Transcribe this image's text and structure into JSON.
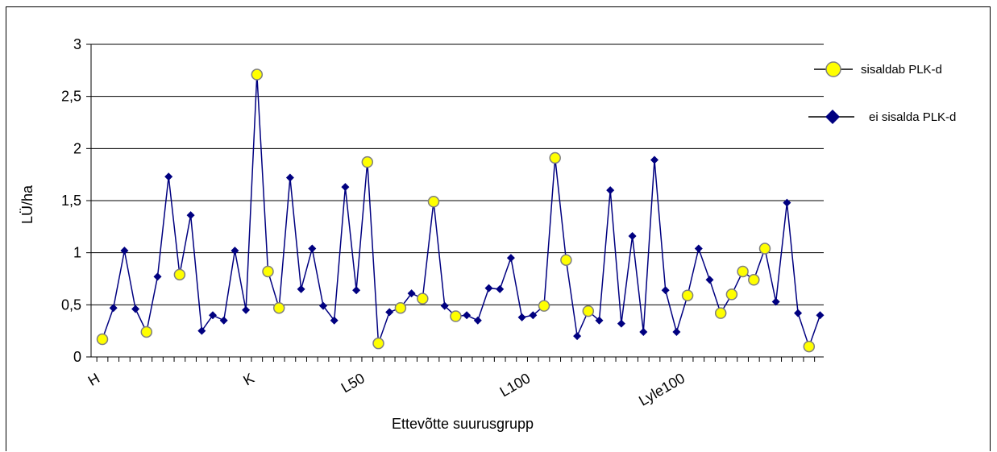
{
  "chart_data": {
    "type": "line",
    "title": "",
    "xlabel": "Ettevõtte suurusgrupp",
    "ylabel": "LÜ/ha",
    "ylim": [
      0,
      3
    ],
    "yticks": [
      "0",
      "0,5",
      "1",
      "1,5",
      "2",
      "2,5",
      "3"
    ],
    "grid": true,
    "legend_position": "right",
    "colors": {
      "line": "#000080",
      "marker_with": "#ffff00",
      "marker_without": "#000080",
      "marker_edge": "#7f7f7f"
    },
    "xtick_labels": [
      {
        "index": 0,
        "label": "H"
      },
      {
        "index": 14,
        "label": "K"
      },
      {
        "index": 24,
        "label": "L50"
      },
      {
        "index": 39,
        "label": "L100"
      },
      {
        "index": 53,
        "label": "Lyle100"
      }
    ],
    "series": [
      {
        "name": "ei sisalda PLK-d",
        "values": [
          0.17,
          0.47,
          1.02,
          0.46,
          0.24,
          0.77,
          1.73,
          0.79,
          1.36,
          0.25,
          0.4,
          0.35,
          1.02,
          0.45,
          2.71,
          0.82,
          0.47,
          1.72,
          0.65,
          1.04,
          0.49,
          0.35,
          1.63,
          0.64,
          1.87,
          0.13,
          0.43,
          0.47,
          0.61,
          0.56,
          1.49,
          0.49,
          0.39,
          0.4,
          0.35,
          0.66,
          0.65,
          0.95,
          0.38,
          0.4,
          0.49,
          1.91,
          0.93,
          0.2,
          0.44,
          0.35,
          1.6,
          0.32,
          1.16,
          0.24,
          1.89,
          0.64,
          0.24,
          0.59,
          1.04,
          0.74,
          0.42,
          0.6,
          0.82,
          0.74,
          1.04,
          0.53,
          1.48,
          0.42,
          0.1,
          0.4
        ]
      },
      {
        "name": "sisaldab PLK-d",
        "indices": [
          0,
          4,
          7,
          14,
          15,
          16,
          24,
          25,
          27,
          29,
          30,
          32,
          40,
          41,
          42,
          44,
          53,
          56,
          57,
          58,
          59,
          60,
          64
        ]
      }
    ]
  }
}
